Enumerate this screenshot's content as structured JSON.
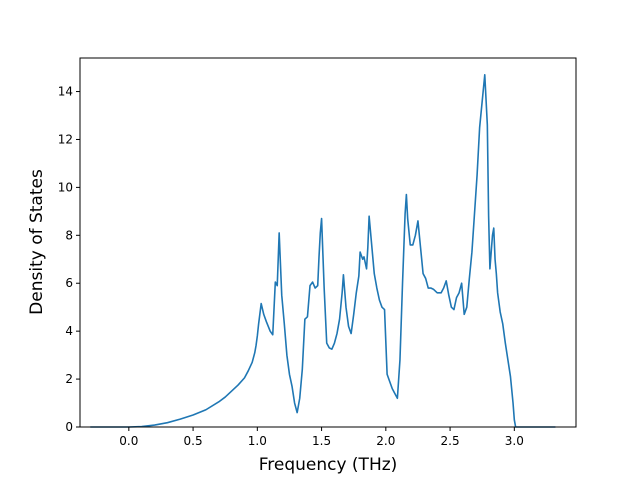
{
  "chart_data": {
    "type": "line",
    "title": "",
    "xlabel": "Frequency (THz)",
    "ylabel": "Density of States",
    "xlim": [
      -0.38,
      3.48
    ],
    "ylim": [
      0,
      15.4
    ],
    "grid": false,
    "legend": "none",
    "line_color": "#1f77b4",
    "x_ticks": [
      0.0,
      0.5,
      1.0,
      1.5,
      2.0,
      2.5,
      3.0
    ],
    "x_tick_labels": [
      "0.0",
      "0.5",
      "1.0",
      "1.5",
      "2.0",
      "2.5",
      "3.0"
    ],
    "y_ticks": [
      0,
      2,
      4,
      6,
      8,
      10,
      12,
      14
    ],
    "y_tick_labels": [
      "0",
      "2",
      "4",
      "6",
      "8",
      "10",
      "12",
      "14"
    ],
    "series": [
      {
        "x": [
          -0.3,
          0.0,
          0.1,
          0.2,
          0.3,
          0.4,
          0.5,
          0.6,
          0.7,
          0.75,
          0.8,
          0.85,
          0.9,
          0.93,
          0.96,
          0.98,
          0.99,
          1.0,
          1.01,
          1.03,
          1.05,
          1.07,
          1.1,
          1.12,
          1.14,
          1.155,
          1.17,
          1.19,
          1.21,
          1.23,
          1.25,
          1.27,
          1.29,
          1.31,
          1.33,
          1.35,
          1.37,
          1.39,
          1.41,
          1.43,
          1.45,
          1.47,
          1.48,
          1.49,
          1.5,
          1.52,
          1.54,
          1.56,
          1.58,
          1.6,
          1.62,
          1.64,
          1.66,
          1.67,
          1.69,
          1.71,
          1.73,
          1.75,
          1.77,
          1.79,
          1.8,
          1.82,
          1.83,
          1.85,
          1.86,
          1.87,
          1.89,
          1.91,
          1.93,
          1.95,
          1.97,
          1.99,
          2.01,
          2.03,
          2.05,
          2.07,
          2.09,
          2.11,
          2.13,
          2.15,
          2.16,
          2.17,
          2.19,
          2.21,
          2.23,
          2.25,
          2.27,
          2.29,
          2.31,
          2.33,
          2.35,
          2.37,
          2.4,
          2.43,
          2.45,
          2.47,
          2.49,
          2.51,
          2.53,
          2.55,
          2.57,
          2.59,
          2.61,
          2.63,
          2.65,
          2.67,
          2.69,
          2.71,
          2.73,
          2.75,
          2.77,
          2.79,
          2.8,
          2.81,
          2.82,
          2.83,
          2.84,
          2.85,
          2.86,
          2.87,
          2.89,
          2.91,
          2.93,
          2.95,
          2.97,
          2.99,
          3.0,
          3.01,
          3.02,
          3.1,
          3.2,
          3.32
        ],
        "y": [
          0,
          0,
          0.02,
          0.08,
          0.18,
          0.33,
          0.5,
          0.72,
          1.05,
          1.25,
          1.5,
          1.75,
          2.05,
          2.35,
          2.7,
          3.1,
          3.4,
          3.8,
          4.3,
          5.15,
          4.7,
          4.4,
          4.0,
          3.85,
          6.05,
          5.9,
          8.1,
          5.5,
          4.3,
          3.0,
          2.2,
          1.7,
          1.0,
          0.6,
          1.2,
          2.4,
          4.5,
          4.6,
          5.9,
          6.05,
          5.8,
          5.9,
          7.1,
          8.1,
          8.7,
          5.8,
          3.5,
          3.3,
          3.25,
          3.5,
          3.9,
          4.5,
          5.6,
          6.35,
          5.0,
          4.2,
          3.9,
          4.7,
          5.6,
          6.3,
          7.3,
          7.0,
          7.1,
          6.6,
          7.5,
          8.8,
          7.6,
          6.4,
          5.8,
          5.3,
          5.0,
          4.9,
          2.2,
          1.9,
          1.6,
          1.4,
          1.2,
          2.8,
          6.0,
          8.9,
          9.7,
          8.7,
          7.6,
          7.6,
          8.0,
          8.6,
          7.5,
          6.4,
          6.2,
          5.8,
          5.8,
          5.75,
          5.6,
          5.6,
          5.8,
          6.1,
          5.5,
          5.0,
          4.9,
          5.4,
          5.6,
          6.0,
          4.7,
          5.0,
          6.2,
          7.3,
          8.9,
          10.5,
          12.5,
          13.6,
          14.7,
          12.6,
          8.8,
          6.6,
          7.3,
          8.0,
          8.3,
          7.0,
          6.4,
          5.6,
          4.8,
          4.3,
          3.5,
          2.8,
          2.1,
          1.0,
          0.3,
          0,
          0,
          0,
          0,
          0
        ]
      }
    ]
  }
}
